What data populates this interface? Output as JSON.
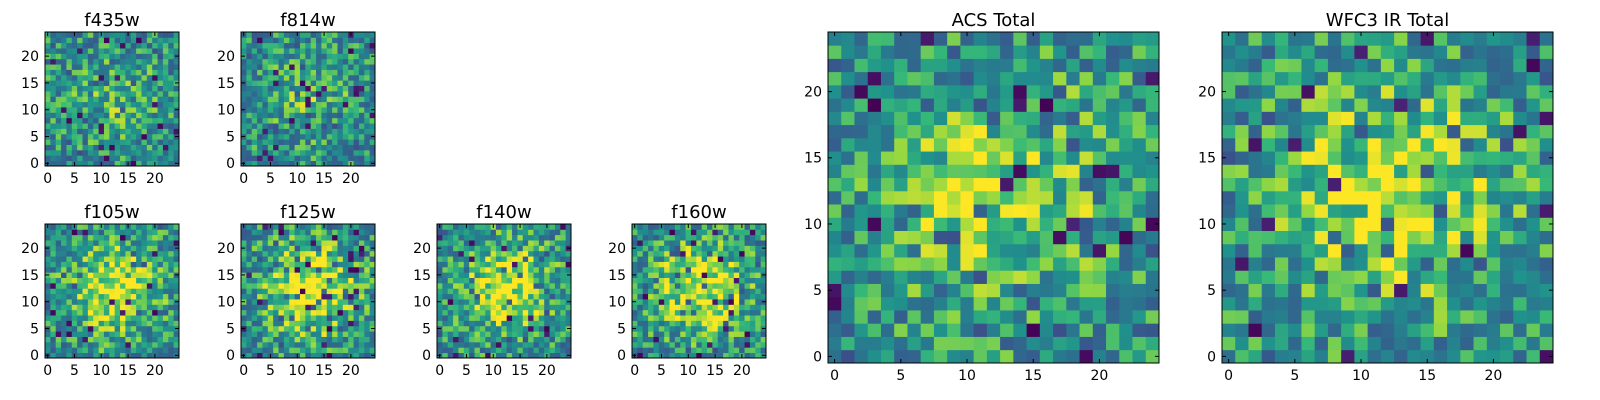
{
  "chart_data": [
    {
      "type": "heatmap",
      "title": "f435w",
      "grid_size": 25,
      "xticks": [
        "0",
        "5",
        "10",
        "15",
        "20"
      ],
      "yticks": [
        "0",
        "5",
        "10",
        "15",
        "20"
      ],
      "colormap": "viridis",
      "grid": false,
      "seed": 11,
      "peak": 0.15
    },
    {
      "type": "heatmap",
      "title": "f814w",
      "grid_size": 25,
      "xticks": [
        "0",
        "5",
        "10",
        "15",
        "20"
      ],
      "yticks": [
        "0",
        "5",
        "10",
        "15",
        "20"
      ],
      "colormap": "viridis",
      "grid": false,
      "seed": 23,
      "peak": 0.15
    },
    {
      "type": "heatmap",
      "title": "ACS Total",
      "grid_size": 25,
      "xticks": [
        "0",
        "5",
        "10",
        "15",
        "20"
      ],
      "yticks": [
        "0",
        "5",
        "10",
        "15",
        "20"
      ],
      "colormap": "viridis",
      "grid": false,
      "seed": 37,
      "peak": 0.3
    },
    {
      "type": "heatmap",
      "title": "WFC3 IR Total",
      "grid_size": 25,
      "xticks": [
        "0",
        "5",
        "10",
        "15",
        "20"
      ],
      "yticks": [
        "0",
        "5",
        "10",
        "15",
        "20"
      ],
      "colormap": "viridis",
      "grid": false,
      "seed": 41,
      "peak": 0.35
    },
    {
      "type": "heatmap",
      "title": "f105w",
      "grid_size": 25,
      "xticks": [
        "0",
        "5",
        "10",
        "15",
        "20"
      ],
      "yticks": [
        "0",
        "5",
        "10",
        "15",
        "20"
      ],
      "colormap": "viridis",
      "grid": false,
      "seed": 53,
      "peak": 0.4
    },
    {
      "type": "heatmap",
      "title": "f125w",
      "grid_size": 25,
      "xticks": [
        "0",
        "5",
        "10",
        "15",
        "20"
      ],
      "yticks": [
        "0",
        "5",
        "10",
        "15",
        "20"
      ],
      "colormap": "viridis",
      "grid": false,
      "seed": 67,
      "peak": 0.45
    },
    {
      "type": "heatmap",
      "title": "f140w",
      "grid_size": 25,
      "xticks": [
        "0",
        "5",
        "10",
        "15",
        "20"
      ],
      "yticks": [
        "0",
        "5",
        "10",
        "15",
        "20"
      ],
      "colormap": "viridis",
      "grid": false,
      "seed": 79,
      "peak": 0.4
    },
    {
      "type": "heatmap",
      "title": "f160w",
      "grid_size": 25,
      "xticks": [
        "0",
        "5",
        "10",
        "15",
        "20"
      ],
      "yticks": [
        "0",
        "5",
        "10",
        "15",
        "20"
      ],
      "colormap": "viridis",
      "grid": false,
      "seed": 97,
      "peak": 0.4
    }
  ]
}
